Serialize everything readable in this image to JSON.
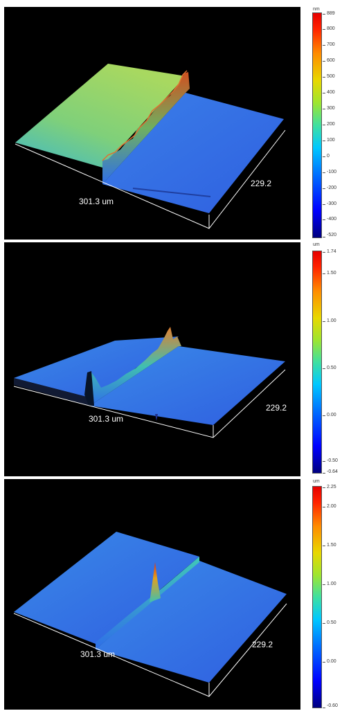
{
  "panels": [
    {
      "unit": "nm",
      "x_dim": "301.3 um",
      "y_dim": "229.2",
      "scale_labels": [
        "889",
        "800",
        "700",
        "600",
        "500",
        "400",
        "300",
        "200",
        "100",
        "0",
        "-100",
        "-200",
        "-300",
        "-400",
        "-520"
      ]
    },
    {
      "unit": "um",
      "x_dim": "301.3 um",
      "y_dim": "229.2",
      "scale_labels": [
        "1.74",
        "1.50",
        "1.00",
        "0.50",
        "0.00",
        "-0.50",
        "-0.64"
      ]
    },
    {
      "unit": "um",
      "x_dim": "301.3 um",
      "y_dim": "229.2",
      "scale_labels": [
        "2.25",
        "2.00",
        "1.50",
        "1.00",
        "0.50",
        "0.00",
        "-0.60"
      ]
    }
  ],
  "colors": {
    "background": "#000000",
    "colormap": "jet",
    "axis_lines": "#ffffff"
  }
}
